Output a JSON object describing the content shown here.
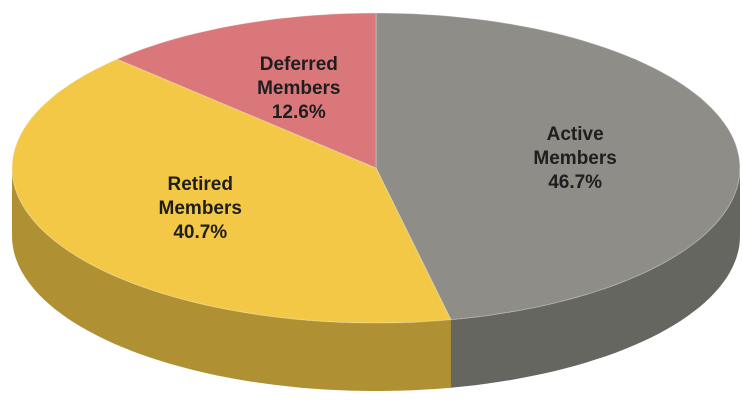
{
  "chart_data": {
    "type": "pie",
    "categories": [
      "Active Members",
      "Retired Members",
      "Deferred Members"
    ],
    "values": [
      46.7,
      40.7,
      12.6
    ],
    "value_labels": [
      "46.7%",
      "40.7%",
      "12.6%"
    ],
    "colors": [
      "#8e8d87",
      "#f3c846",
      "#d9777a"
    ]
  }
}
